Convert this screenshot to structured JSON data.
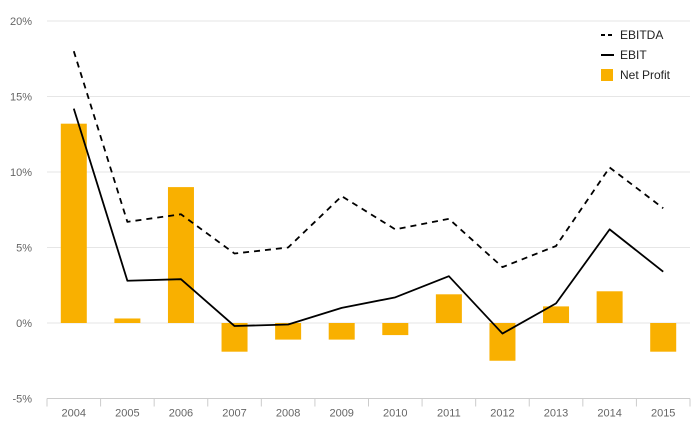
{
  "chart_data": {
    "type": "bar",
    "categories": [
      "2004",
      "2005",
      "2006",
      "2007",
      "2008",
      "2009",
      "2010",
      "2011",
      "2012",
      "2013",
      "2014",
      "2015"
    ],
    "series": [
      {
        "name": "EBITDA",
        "kind": "line",
        "dash": "dashed",
        "color": "#000000",
        "values": [
          18.0,
          6.7,
          7.2,
          4.6,
          5.0,
          8.4,
          6.2,
          6.9,
          3.7,
          5.1,
          10.3,
          7.6
        ]
      },
      {
        "name": "EBIT",
        "kind": "line",
        "dash": "solid",
        "color": "#000000",
        "values": [
          14.2,
          2.8,
          2.9,
          -0.2,
          -0.1,
          1.0,
          1.7,
          3.1,
          -0.7,
          1.3,
          6.2,
          3.4
        ]
      },
      {
        "name": "Net Profit",
        "kind": "bar",
        "color": "#f9b000",
        "values": [
          13.2,
          0.3,
          9.0,
          -1.9,
          -1.1,
          -1.1,
          -0.8,
          1.9,
          -2.5,
          1.1,
          2.1,
          -1.9
        ]
      }
    ],
    "yticks": [
      "20%",
      "15%",
      "10%",
      "5%",
      "0%",
      "-5%"
    ],
    "ylim": [
      -5,
      20
    ],
    "grid": true,
    "legend": "top-right",
    "colors": {
      "bar": "#f9b000",
      "line": "#000000",
      "grid": "#e6e6e6",
      "axis_text": "#666666"
    }
  }
}
